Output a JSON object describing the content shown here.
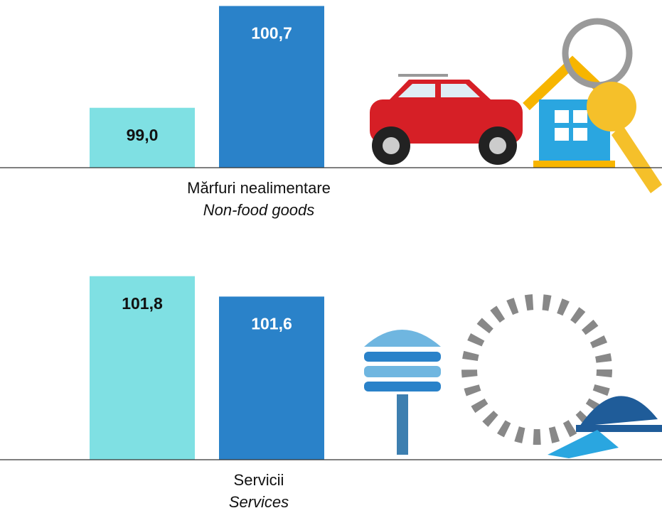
{
  "chart_data": [
    {
      "type": "bar",
      "categories": [
        "Mărfuri nealimentare"
      ],
      "category_translations": [
        "Non-food goods"
      ],
      "series": [
        {
          "color": "#7fe0e3",
          "label_color": "#111111",
          "values": [
            99.0
          ],
          "value_labels": [
            "99,0"
          ]
        },
        {
          "color": "#2a82c9",
          "label_color": "#ffffff",
          "values": [
            100.7
          ],
          "value_labels": [
            "100,7"
          ]
        }
      ],
      "ylim": [
        98,
        100.8
      ]
    },
    {
      "type": "bar",
      "categories": [
        "Servicii"
      ],
      "category_translations": [
        "Services"
      ],
      "series": [
        {
          "color": "#7fe0e3",
          "label_color": "#111111",
          "values": [
            101.8
          ],
          "value_labels": [
            "101,8"
          ]
        },
        {
          "color": "#2a82c9",
          "label_color": "#ffffff",
          "values": [
            101.6
          ],
          "value_labels": [
            "101,6"
          ]
        }
      ],
      "ylim": [
        100,
        102
      ]
    }
  ]
}
